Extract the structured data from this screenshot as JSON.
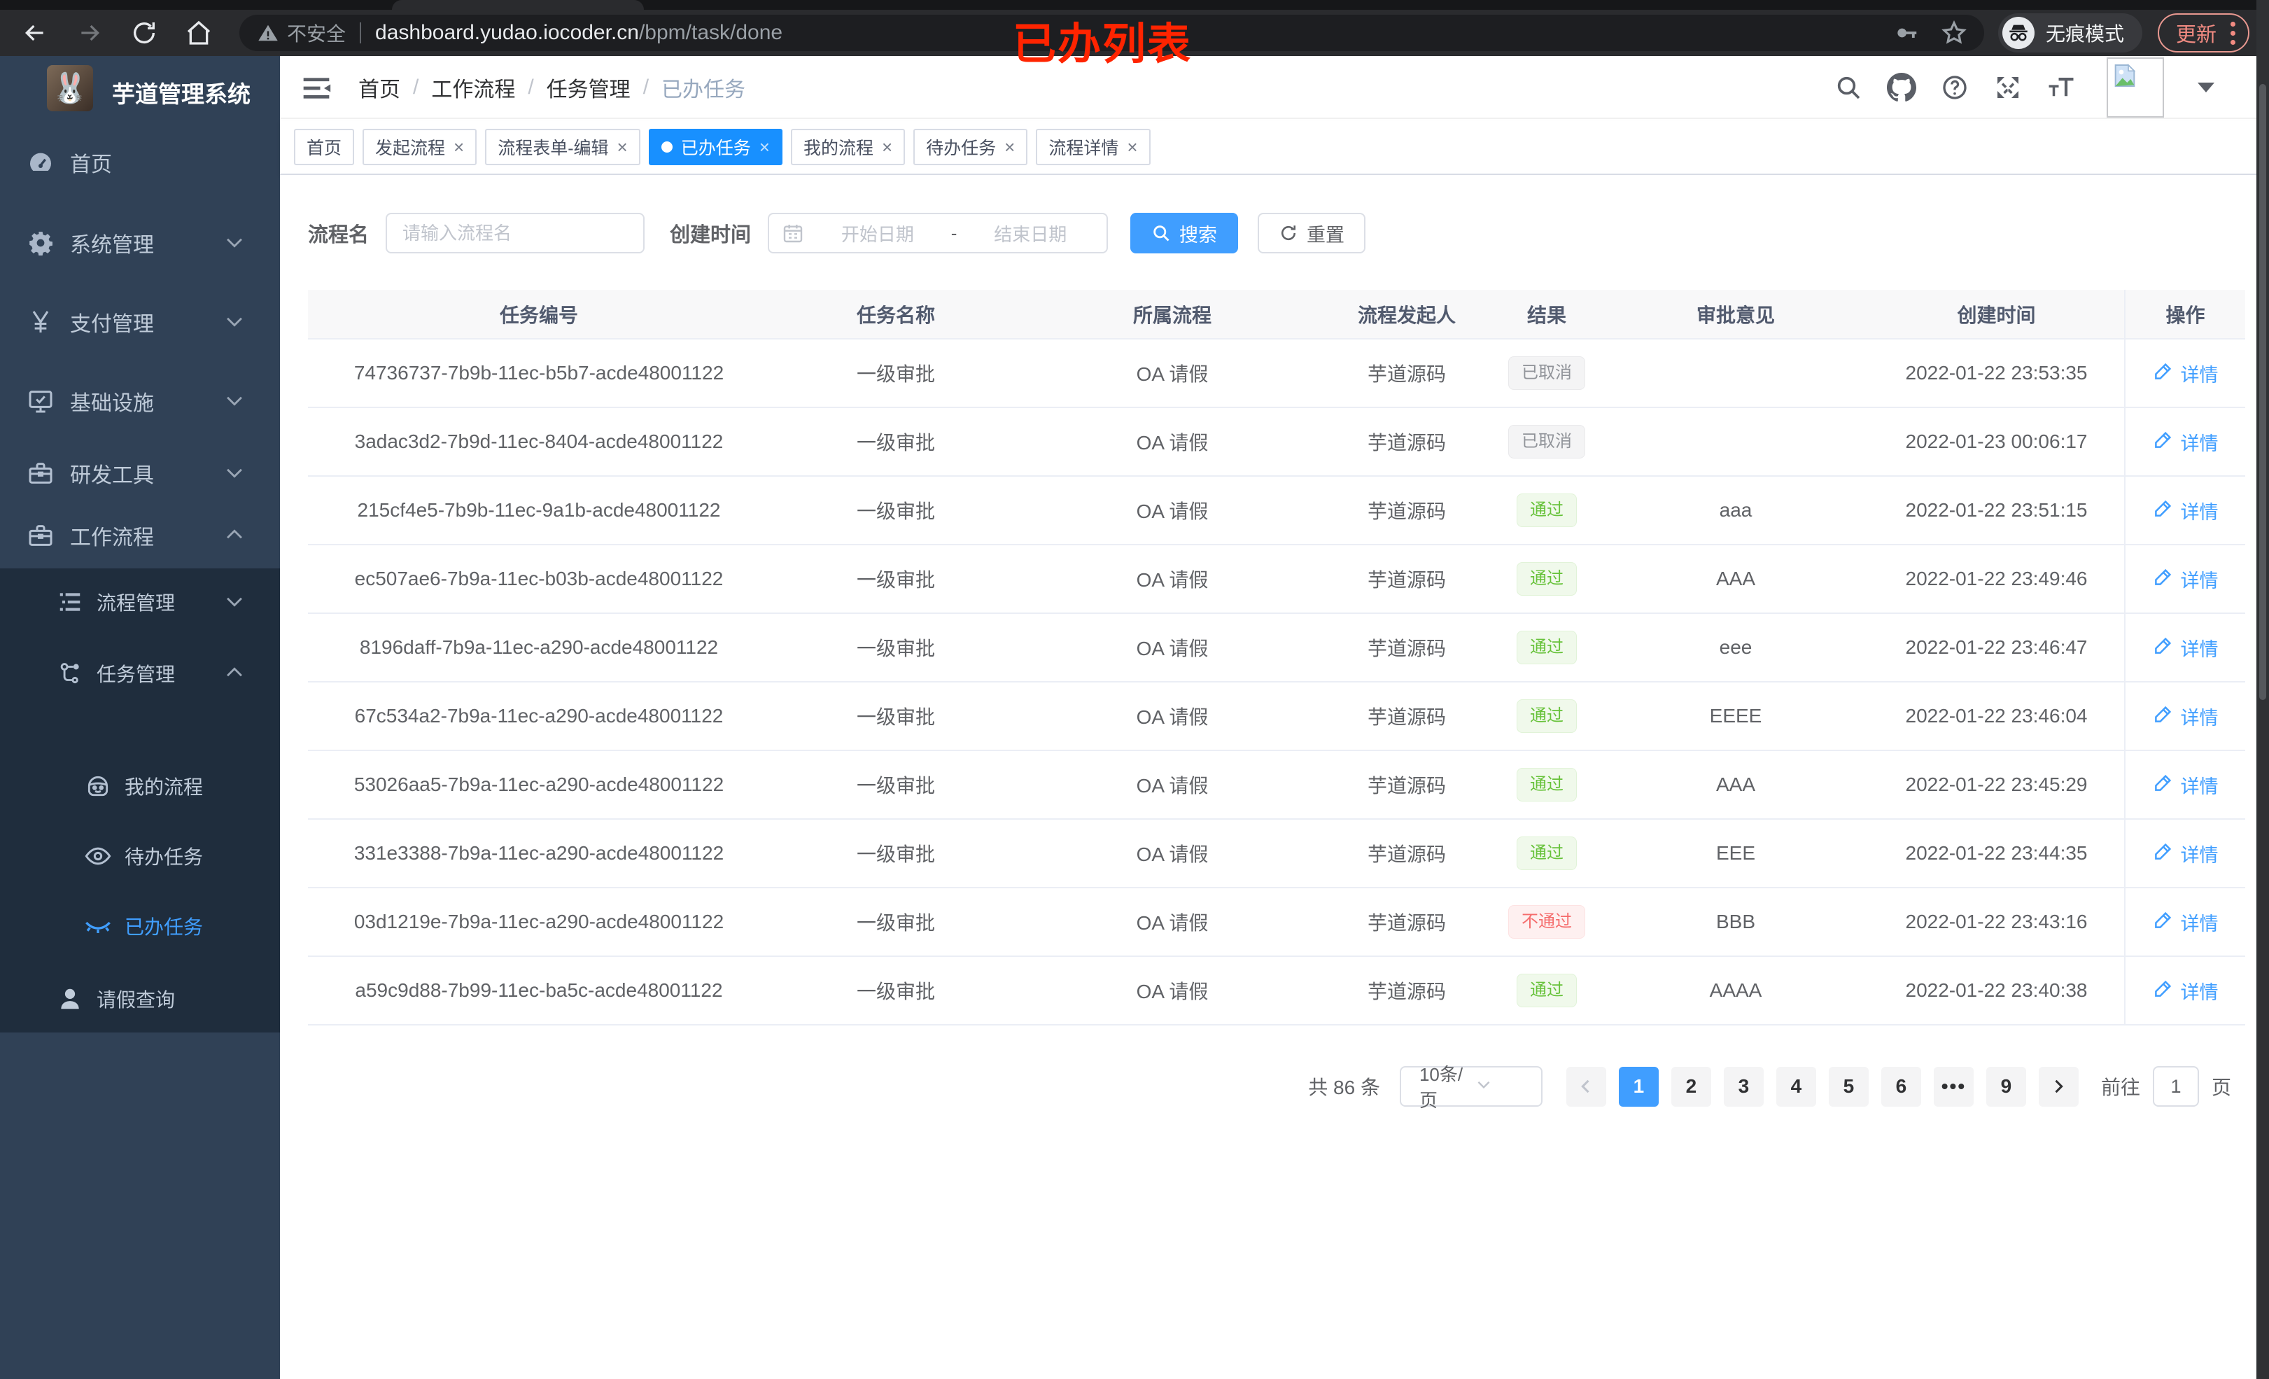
{
  "browser": {
    "security_label": "不安全",
    "url_host": "dashboard.yudao.iocoder.cn",
    "url_path": "/bpm/task/done",
    "incognito_label": "无痕模式",
    "update_label": "更新"
  },
  "annotation": {
    "text": "已办列表",
    "color": "#ff2400"
  },
  "sidebar": {
    "title": "芋道管理系统",
    "logo_icon": "rabbit-logo",
    "menu": [
      {
        "label": "首页",
        "icon": "dashboard-icon",
        "level": 1,
        "chevron": null,
        "active": false
      },
      {
        "label": "系统管理",
        "icon": "gear-icon",
        "level": 1,
        "chevron": "down",
        "active": false
      },
      {
        "label": "支付管理",
        "icon": "yen-icon",
        "level": 1,
        "chevron": "down",
        "active": false
      },
      {
        "label": "基础设施",
        "icon": "monitor-icon",
        "level": 1,
        "chevron": "down",
        "active": false
      },
      {
        "label": "研发工具",
        "icon": "toolbox-icon",
        "level": 1,
        "chevron": "down",
        "active": false
      },
      {
        "label": "工作流程",
        "icon": "toolbox-icon",
        "level": 1,
        "chevron": "up",
        "active": false
      },
      {
        "label": "流程管理",
        "icon": "list-tree-icon",
        "level": 2,
        "chevron": "down",
        "active": false
      },
      {
        "label": "任务管理",
        "icon": "flow-icon",
        "level": 2,
        "chevron": "up",
        "active": false
      },
      {
        "label": "我的流程",
        "icon": "robot-icon",
        "level": 3,
        "chevron": null,
        "active": false
      },
      {
        "label": "待办任务",
        "icon": "eye-open-icon",
        "level": 3,
        "chevron": null,
        "active": false
      },
      {
        "label": "已办任务",
        "icon": "eye-closed-icon",
        "level": 3,
        "chevron": null,
        "active": true
      },
      {
        "label": "请假查询",
        "icon": "user-icon",
        "level": 2,
        "chevron": null,
        "active": false
      }
    ]
  },
  "breadcrumb": [
    "首页",
    "工作流程",
    "任务管理",
    "已办任务"
  ],
  "header_icons": [
    "search-icon",
    "github-icon",
    "help-icon",
    "fullscreen-icon",
    "font-size-icon"
  ],
  "tabs": [
    {
      "label": "首页",
      "active": false,
      "closable": false
    },
    {
      "label": "发起流程",
      "active": false,
      "closable": true
    },
    {
      "label": "流程表单-编辑",
      "active": false,
      "closable": true
    },
    {
      "label": "已办任务",
      "active": true,
      "closable": true
    },
    {
      "label": "我的流程",
      "active": false,
      "closable": true
    },
    {
      "label": "待办任务",
      "active": false,
      "closable": true
    },
    {
      "label": "流程详情",
      "active": false,
      "closable": true
    }
  ],
  "filters": {
    "name_label": "流程名",
    "name_placeholder": "请输入流程名",
    "time_label": "创建时间",
    "start_placeholder": "开始日期",
    "range_separator": "-",
    "end_placeholder": "结束日期",
    "search_label": "搜索",
    "reset_label": "重置"
  },
  "table": {
    "columns": [
      "任务编号",
      "任务名称",
      "所属流程",
      "流程发起人",
      "结果",
      "审批意见",
      "创建时间",
      "操作"
    ],
    "action_label": "详情",
    "rows": [
      {
        "id": "74736737-7b9b-11ec-b5b7-acde48001122",
        "name": "一级审批",
        "process": "OA 请假",
        "starter": "芋道源码",
        "result": "已取消",
        "result_type": "info",
        "comment": "",
        "created": "2022-01-22 23:53:35"
      },
      {
        "id": "3adac3d2-7b9d-11ec-8404-acde48001122",
        "name": "一级审批",
        "process": "OA 请假",
        "starter": "芋道源码",
        "result": "已取消",
        "result_type": "info",
        "comment": "",
        "created": "2022-01-23 00:06:17"
      },
      {
        "id": "215cf4e5-7b9b-11ec-9a1b-acde48001122",
        "name": "一级审批",
        "process": "OA 请假",
        "starter": "芋道源码",
        "result": "通过",
        "result_type": "success",
        "comment": "aaa",
        "created": "2022-01-22 23:51:15"
      },
      {
        "id": "ec507ae6-7b9a-11ec-b03b-acde48001122",
        "name": "一级审批",
        "process": "OA 请假",
        "starter": "芋道源码",
        "result": "通过",
        "result_type": "success",
        "comment": "AAA",
        "created": "2022-01-22 23:49:46"
      },
      {
        "id": "8196daff-7b9a-11ec-a290-acde48001122",
        "name": "一级审批",
        "process": "OA 请假",
        "starter": "芋道源码",
        "result": "通过",
        "result_type": "success",
        "comment": "eee",
        "created": "2022-01-22 23:46:47"
      },
      {
        "id": "67c534a2-7b9a-11ec-a290-acde48001122",
        "name": "一级审批",
        "process": "OA 请假",
        "starter": "芋道源码",
        "result": "通过",
        "result_type": "success",
        "comment": "EEEE",
        "created": "2022-01-22 23:46:04"
      },
      {
        "id": "53026aa5-7b9a-11ec-a290-acde48001122",
        "name": "一级审批",
        "process": "OA 请假",
        "starter": "芋道源码",
        "result": "通过",
        "result_type": "success",
        "comment": "AAA",
        "created": "2022-01-22 23:45:29"
      },
      {
        "id": "331e3388-7b9a-11ec-a290-acde48001122",
        "name": "一级审批",
        "process": "OA 请假",
        "starter": "芋道源码",
        "result": "通过",
        "result_type": "success",
        "comment": "EEE",
        "created": "2022-01-22 23:44:35"
      },
      {
        "id": "03d1219e-7b9a-11ec-a290-acde48001122",
        "name": "一级审批",
        "process": "OA 请假",
        "starter": "芋道源码",
        "result": "不通过",
        "result_type": "danger",
        "comment": "BBB",
        "created": "2022-01-22 23:43:16"
      },
      {
        "id": "a59c9d88-7b99-11ec-ba5c-acde48001122",
        "name": "一级审批",
        "process": "OA 请假",
        "starter": "芋道源码",
        "result": "通过",
        "result_type": "success",
        "comment": "AAAA",
        "created": "2022-01-22 23:40:38"
      }
    ]
  },
  "pagination": {
    "total_text": "共 86 条",
    "page_size": "10条/页",
    "pages": [
      "1",
      "2",
      "3",
      "4",
      "5",
      "6",
      "•••",
      "9"
    ],
    "active_page": "1",
    "goto_label": "前往",
    "goto_value": "1",
    "page_unit": "页"
  },
  "colors": {
    "primary": "#409eff",
    "tab_active": "#1890ff",
    "success": "#67c23a",
    "danger": "#f56c6c",
    "info": "#909399",
    "sidebar_bg": "#304156",
    "sidebar_sub_bg": "#1f2d3d"
  }
}
